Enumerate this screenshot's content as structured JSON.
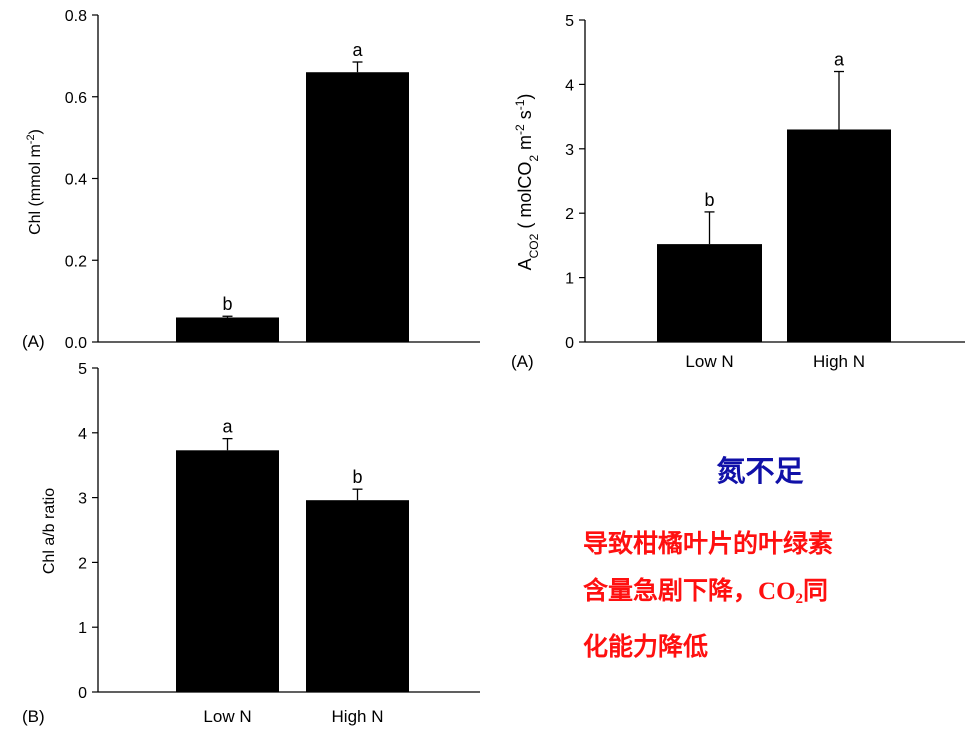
{
  "chart_data": [
    {
      "type": "bar",
      "panel": "(A)",
      "categories": [
        "Low N",
        "High N"
      ],
      "values": [
        0.06,
        0.66
      ],
      "errors": [
        0.003,
        0.025
      ],
      "significance": [
        "b",
        "a"
      ],
      "ylabel": "Chl (mmol m-2)",
      "ylim": [
        0,
        0.8
      ],
      "yticks": [
        "0.0",
        "0.2",
        "0.4",
        "0.6",
        "0.8"
      ],
      "show_xticklabels": false,
      "bar_color": "#000000",
      "grid": false
    },
    {
      "type": "bar",
      "panel": "(B)",
      "categories": [
        "Low N",
        "High N"
      ],
      "values": [
        3.73,
        2.96
      ],
      "errors": [
        0.18,
        0.17
      ],
      "significance": [
        "a",
        "b"
      ],
      "ylabel": "Chl a/b ratio",
      "ylim": [
        0,
        5
      ],
      "yticks": [
        "0",
        "1",
        "2",
        "3",
        "4",
        "5"
      ],
      "show_xticklabels": true,
      "bar_color": "#000000",
      "grid": false
    },
    {
      "type": "bar",
      "panel": "(A)",
      "categories": [
        "Low N",
        "High N"
      ],
      "values": [
        1.52,
        3.3
      ],
      "errors": [
        0.5,
        0.9
      ],
      "significance": [
        "b",
        "a"
      ],
      "ylabel": "ACO2 ( molCO2 m-2 s-1)",
      "ylim": [
        0,
        5
      ],
      "yticks": [
        "0",
        "1",
        "2",
        "3",
        "4",
        "5"
      ],
      "show_xticklabels": true,
      "bar_color": "#000000",
      "grid": false
    }
  ],
  "text": {
    "heading": "氮不足",
    "conclusion_line1": "导致柑橘叶片的叶绿素",
    "conclusion_line2_pre": "含量急剧下降，",
    "conclusion_co2_main": "CO",
    "conclusion_co2_sub": "2",
    "conclusion_line2_post": "同",
    "conclusion_line3": "化能力降低"
  },
  "colors": {
    "heading": "#1010a8",
    "conclusion": "#ff1010",
    "bars": "#000000"
  }
}
